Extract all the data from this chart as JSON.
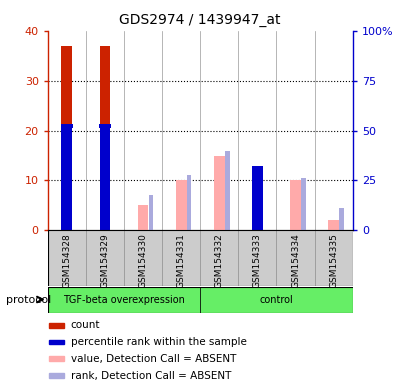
{
  "title": "GDS2974 / 1439947_at",
  "samples": [
    "GSM154328",
    "GSM154329",
    "GSM154330",
    "GSM154331",
    "GSM154332",
    "GSM154333",
    "GSM154334",
    "GSM154335"
  ],
  "red_bars": [
    37.0,
    37.0,
    null,
    null,
    null,
    12.0,
    null,
    null
  ],
  "blue_markers": [
    21.0,
    21.0,
    null,
    null,
    null,
    12.5,
    null,
    null
  ],
  "pink_bars": [
    null,
    null,
    5.0,
    10.0,
    15.0,
    null,
    10.0,
    2.0
  ],
  "lightblue_bars": [
    null,
    null,
    7.0,
    11.0,
    16.0,
    null,
    10.5,
    4.5
  ],
  "ylim_left": [
    0,
    40
  ],
  "ylim_right": [
    0,
    100
  ],
  "yticks_left": [
    0,
    10,
    20,
    30,
    40
  ],
  "yticks_right": [
    0,
    25,
    50,
    75,
    100
  ],
  "ytick_labels_right": [
    "0",
    "25",
    "50",
    "75",
    "100%"
  ],
  "red_color": "#CC2200",
  "blue_color": "#0000CC",
  "pink_color": "#FFAAAA",
  "lightblue_color": "#AAAADD",
  "group_color": "#66EE66",
  "gray_color": "#CCCCCC",
  "tgf_label": "TGF-beta overexpression",
  "ctrl_label": "control",
  "protocol_label": "protocol",
  "legend_colors": [
    "#CC2200",
    "#0000CC",
    "#FFAAAA",
    "#AAAADD"
  ],
  "legend_labels": [
    "count",
    "percentile rank within the sample",
    "value, Detection Call = ABSENT",
    "rank, Detection Call = ABSENT"
  ]
}
